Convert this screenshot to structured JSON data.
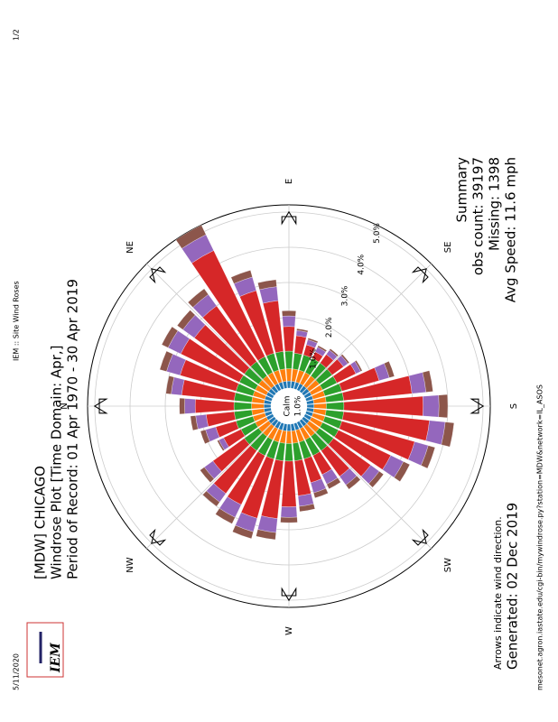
{
  "header": {
    "date": "5/11/2020",
    "page_title": "IEM :: Site Wind Roses",
    "page_no": "1/2"
  },
  "footer": {
    "url": "mesonet.agron.iastate.edu/cgi-bin/mywindrose.py?station=MDW&network=IL_ASOS"
  },
  "logo": "IEM",
  "chart_data": {
    "type": "windrose",
    "title": "[MDW] CHICAGO",
    "subtitle": "Windrose Plot [Time Domain: Apr,]",
    "period": "Period of Record: 01 Apr 1970 - 30 Apr 2019",
    "summary": [
      "Summary",
      "obs count: 39197",
      "Missing: 1398",
      "Avg Speed: 11.6 mph"
    ],
    "note": "Arrows indicate wind direction.",
    "generated": "Generated: 02 Dec 2019",
    "calm_label": "Calm",
    "calm_text": "1.0%",
    "directions": [
      "N",
      "NE",
      "E",
      "SE",
      "S",
      "SW",
      "W",
      "NW"
    ],
    "x": [
      0,
      10,
      20,
      30,
      40,
      50,
      60,
      70,
      80,
      90,
      100,
      110,
      120,
      130,
      140,
      150,
      160,
      170,
      180,
      190,
      200,
      210,
      220,
      230,
      240,
      250,
      260,
      270,
      280,
      290,
      300,
      310,
      320,
      330,
      340,
      350
    ],
    "rlim": [
      0,
      5
    ],
    "rticks": [
      {
        "value": 1,
        "label": "1.0%"
      },
      {
        "value": 2,
        "label": "2.0%"
      },
      {
        "value": 3,
        "label": "3.0%"
      },
      {
        "value": 4,
        "label": "4.0%"
      },
      {
        "value": 5,
        "label": "5.0%"
      }
    ],
    "series": [
      {
        "color": "#1f77b4",
        "values": [
          0.2,
          0.2,
          0.2,
          0.2,
          0.2,
          0.2,
          0.2,
          0.2,
          0.2,
          0.2,
          0.2,
          0.2,
          0.2,
          0.2,
          0.2,
          0.2,
          0.2,
          0.2,
          0.2,
          0.2,
          0.2,
          0.2,
          0.2,
          0.2,
          0.2,
          0.2,
          0.2,
          0.2,
          0.2,
          0.2,
          0.2,
          0.2,
          0.2,
          0.2,
          0.2,
          0.2
        ]
      },
      {
        "color": "#ff7f0e",
        "values": [
          0.35,
          0.35,
          0.35,
          0.35,
          0.35,
          0.35,
          0.35,
          0.35,
          0.35,
          0.35,
          0.35,
          0.35,
          0.35,
          0.35,
          0.35,
          0.35,
          0.35,
          0.35,
          0.35,
          0.35,
          0.35,
          0.35,
          0.35,
          0.35,
          0.35,
          0.35,
          0.35,
          0.35,
          0.35,
          0.35,
          0.35,
          0.35,
          0.35,
          0.35,
          0.35,
          0.35
        ]
      },
      {
        "color": "#2ca02c",
        "values": [
          0.5,
          0.5,
          0.5,
          0.5,
          0.5,
          0.5,
          0.5,
          0.5,
          0.5,
          0.5,
          0.45,
          0.45,
          0.45,
          0.45,
          0.45,
          0.45,
          0.5,
          0.5,
          0.5,
          0.5,
          0.5,
          0.5,
          0.5,
          0.5,
          0.5,
          0.5,
          0.5,
          0.5,
          0.5,
          0.5,
          0.5,
          0.5,
          0.5,
          0.45,
          0.5,
          0.5
        ]
      },
      {
        "color": "#d62728",
        "values": [
          1.1,
          1.5,
          1.65,
          1.85,
          1.75,
          1.95,
          3.35,
          1.85,
          1.45,
          0.7,
          0.5,
          0.3,
          0.2,
          0.3,
          0.4,
          0.6,
          1.1,
          1.95,
          2.25,
          2.45,
          2.15,
          1.65,
          1.3,
          0.9,
          0.6,
          0.7,
          1.0,
          1.3,
          1.65,
          1.75,
          1.55,
          1.5,
          1.1,
          0.55,
          0.6,
          0.8
        ]
      },
      {
        "color": "#9467bd",
        "values": [
          0.3,
          0.3,
          0.4,
          0.4,
          0.4,
          0.4,
          0.5,
          0.4,
          0.4,
          0.3,
          0.15,
          0.15,
          0.15,
          0.15,
          0.15,
          0.15,
          0.3,
          0.4,
          0.45,
          0.45,
          0.4,
          0.4,
          0.3,
          0.3,
          0.3,
          0.3,
          0.3,
          0.3,
          0.4,
          0.4,
          0.4,
          0.3,
          0.3,
          0.15,
          0.3,
          0.3
        ]
      },
      {
        "color": "#8c564b",
        "values": [
          0.15,
          0.15,
          0.2,
          0.2,
          0.2,
          0.2,
          0.3,
          0.2,
          0.2,
          0.15,
          0.05,
          0.05,
          0.05,
          0.05,
          0.05,
          0.05,
          0.15,
          0.2,
          0.25,
          0.25,
          0.2,
          0.2,
          0.15,
          0.15,
          0.15,
          0.15,
          0.15,
          0.15,
          0.2,
          0.2,
          0.2,
          0.15,
          0.15,
          0.05,
          0.15,
          0.15
        ]
      }
    ]
  }
}
